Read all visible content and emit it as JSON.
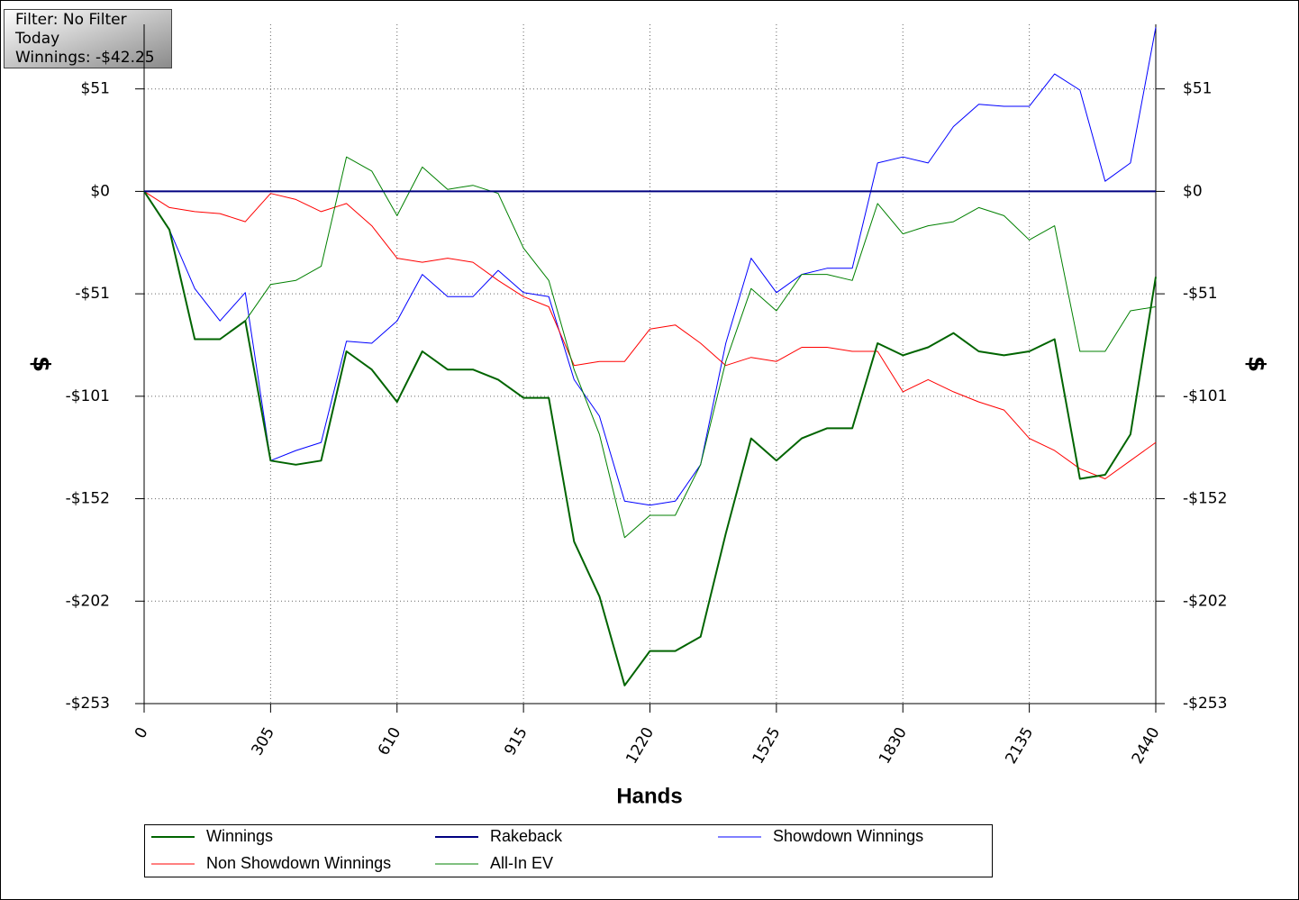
{
  "chart_data": {
    "type": "line",
    "annotations": [
      "Filter: No Filter",
      "Today",
      "Winnings: -$42.25"
    ],
    "x_label": "Hands",
    "y_label": "$",
    "xlim": [
      0,
      2440
    ],
    "xticks": [
      0,
      305,
      610,
      915,
      1220,
      1525,
      1830,
      2135,
      2440
    ],
    "ylim": [
      -253,
      82.5
    ],
    "yticks": [
      {
        "value": 50.6,
        "label": "$51"
      },
      {
        "value": 0,
        "label": "$0"
      },
      {
        "value": -50.6,
        "label": "-$51"
      },
      {
        "value": -101.2,
        "label": "-$101"
      },
      {
        "value": -151.8,
        "label": "-$152"
      },
      {
        "value": -202.4,
        "label": "-$202"
      },
      {
        "value": -253,
        "label": "-$253"
      }
    ],
    "grid": true,
    "x": [
      0,
      61,
      122,
      183,
      244,
      305,
      366,
      427,
      488,
      549,
      610,
      671,
      732,
      793,
      854,
      915,
      976,
      1037,
      1098,
      1159,
      1220,
      1281,
      1342,
      1403,
      1464,
      1525,
      1586,
      1647,
      1708,
      1769,
      1830,
      1891,
      1952,
      2013,
      2074,
      2135,
      2196,
      2257,
      2318,
      2379,
      2440
    ],
    "series": [
      {
        "name": "Winnings",
        "color": "#006400",
        "width": 2,
        "values": [
          0,
          -19,
          -73,
          -73,
          -64,
          -133,
          -135,
          -133,
          -79,
          -88,
          -104,
          -79,
          -88,
          -88,
          -93,
          -102,
          -102,
          -173,
          -200,
          -244,
          -227,
          -227,
          -220,
          -169,
          -122,
          -133,
          -122,
          -117,
          -117,
          -75,
          -81,
          -77,
          -70,
          -79,
          -81,
          -79,
          -73,
          -142,
          -140,
          -120,
          -42.25
        ]
      },
      {
        "name": "Rakeback",
        "color": "#000080",
        "width": 2,
        "values": [
          0,
          0,
          0,
          0,
          0,
          0,
          0,
          0,
          0,
          0,
          0,
          0,
          0,
          0,
          0,
          0,
          0,
          0,
          0,
          0,
          0,
          0,
          0,
          0,
          0,
          0,
          0,
          0,
          0,
          0,
          0,
          0,
          0,
          0,
          0,
          0,
          0,
          0,
          0,
          0,
          0
        ]
      },
      {
        "name": "Showdown Winnings",
        "color": "#0000ff",
        "width": 1,
        "values": [
          0,
          -19,
          -48,
          -64,
          -50,
          -133,
          -128,
          -124,
          -74,
          -75,
          -64,
          -41,
          -52,
          -52,
          -39,
          -50,
          -52,
          -93,
          -111,
          -153,
          -155,
          -153,
          -135,
          -75,
          -33,
          -50,
          -41,
          -38,
          -38,
          14,
          17,
          14,
          32,
          43,
          42,
          42,
          58,
          50,
          5,
          14,
          81
        ]
      },
      {
        "name": "Non Showdown Winnings",
        "color": "#ff0000",
        "width": 1,
        "values": [
          0,
          -8,
          -10,
          -11,
          -15,
          -1,
          -4,
          -10,
          -6,
          -17,
          -33,
          -35,
          -33,
          -35,
          -44,
          -52,
          -57,
          -86,
          -84,
          -84,
          -68,
          -66,
          -75,
          -86,
          -82,
          -84,
          -77,
          -77,
          -79,
          -79,
          -99,
          -93,
          -99,
          -104,
          -108,
          -122,
          -128,
          -137,
          -142,
          -133,
          -124
        ]
      },
      {
        "name": "All-In EV",
        "color": "#008000",
        "width": 1,
        "values": [
          0,
          -19,
          -73,
          -73,
          -64,
          -46,
          -44,
          -37,
          17,
          10,
          -12,
          12,
          1,
          3,
          -1,
          -28,
          -44,
          -88,
          -120,
          -171,
          -160,
          -160,
          -135,
          -84,
          -48,
          -59,
          -41,
          -41,
          -44,
          -6,
          -21,
          -17,
          -15,
          -8,
          -12,
          -24,
          -17,
          -79,
          -79,
          -59,
          -57
        ]
      }
    ]
  }
}
